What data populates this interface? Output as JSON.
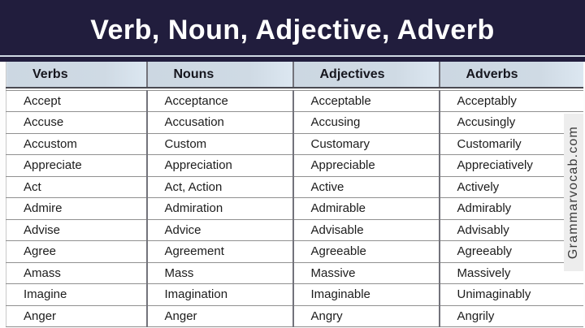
{
  "title": "Verb, Noun, Adjective, Adverb",
  "watermark": "Grammarvocab.com",
  "table": {
    "headers": [
      "Verbs",
      "Nouns",
      "Adjectives",
      "Adverbs"
    ],
    "rows": [
      [
        "Accept",
        "Acceptance",
        "Acceptable",
        "Acceptably"
      ],
      [
        "Accuse",
        "Accusation",
        "Accusing",
        "Accusingly"
      ],
      [
        "Accustom",
        "Custom",
        "Customary",
        "Customarily"
      ],
      [
        "Appreciate",
        "Appreciation",
        "Appreciable",
        "Appreciatively"
      ],
      [
        "Act",
        "Act, Action",
        "Active",
        "Actively"
      ],
      [
        "Admire",
        "Admiration",
        "Admirable",
        "Admirably"
      ],
      [
        "Advise",
        "Advice",
        "Advisable",
        "Advisably"
      ],
      [
        "Agree",
        "Agreement",
        "Agreeable",
        "Agreeably"
      ],
      [
        "Amass",
        "Mass",
        "Massive",
        "Massively"
      ],
      [
        "Imagine",
        "Imagination",
        "Imaginable",
        "Unimaginably"
      ],
      [
        "Anger",
        "Anger",
        "Angry",
        "Angrily"
      ]
    ]
  },
  "colors": {
    "title_bg": "#211d3d",
    "title_text": "#ffffff",
    "header_bg": "#cdd8e3",
    "row_bg": "#ffffff",
    "grid_line": "#909090",
    "column_line": "#73737b",
    "body_text": "#1c1c1c",
    "watermark_bg": "#ededed",
    "watermark_text": "#3a3a3a"
  }
}
